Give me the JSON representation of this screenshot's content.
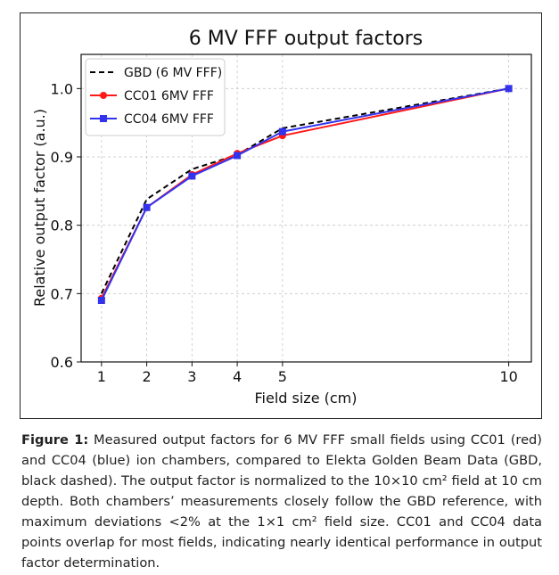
{
  "chart_data": {
    "type": "line",
    "title": "6 MV FFF output factors",
    "xlabel": "Field size (cm)",
    "ylabel": "Relative output factor (a.u.)",
    "x": [
      1,
      2,
      3,
      4,
      5,
      10
    ],
    "x_ticks": [
      "1",
      "2",
      "3",
      "4",
      "5",
      "10"
    ],
    "y_ticks": [
      "0.6",
      "0.7",
      "0.8",
      "0.9",
      "1.0"
    ],
    "xlim": [
      0.55,
      10.5
    ],
    "ylim": [
      0.6,
      1.05
    ],
    "grid": true,
    "legend_position": "top-left",
    "series": [
      {
        "name": "GBD (6 MV FFF)",
        "values": [
          0.7,
          0.838,
          0.882,
          0.903,
          0.942,
          1.0
        ],
        "color": "#000000",
        "style": "dashed",
        "marker": "none"
      },
      {
        "name": "CC01 6MV FFF",
        "values": [
          0.693,
          0.826,
          0.874,
          0.905,
          0.931,
          1.0
        ],
        "color": "#ff1a1a",
        "style": "solid",
        "marker": "circle"
      },
      {
        "name": "CC04 6MV FFF",
        "values": [
          0.69,
          0.826,
          0.872,
          0.902,
          0.937,
          1.0
        ],
        "color": "#3333ee",
        "style": "solid",
        "marker": "square"
      }
    ]
  },
  "caption": {
    "label": "Figure 1:",
    "text": " Measured output factors for 6 MV FFF small fields using CC01 (red) and CC04 (blue) ion chambers, compared to Elekta Golden Beam Data (GBD, black dashed). The output factor is normalized to the 10×10 cm² field at 10 cm depth. Both chambers’ measurements closely follow the GBD reference, with maximum deviations <2% at the 1×1 cm² field size. CC01 and CC04 data points overlap for most fields, indicating nearly identical performance in output factor determination."
  }
}
